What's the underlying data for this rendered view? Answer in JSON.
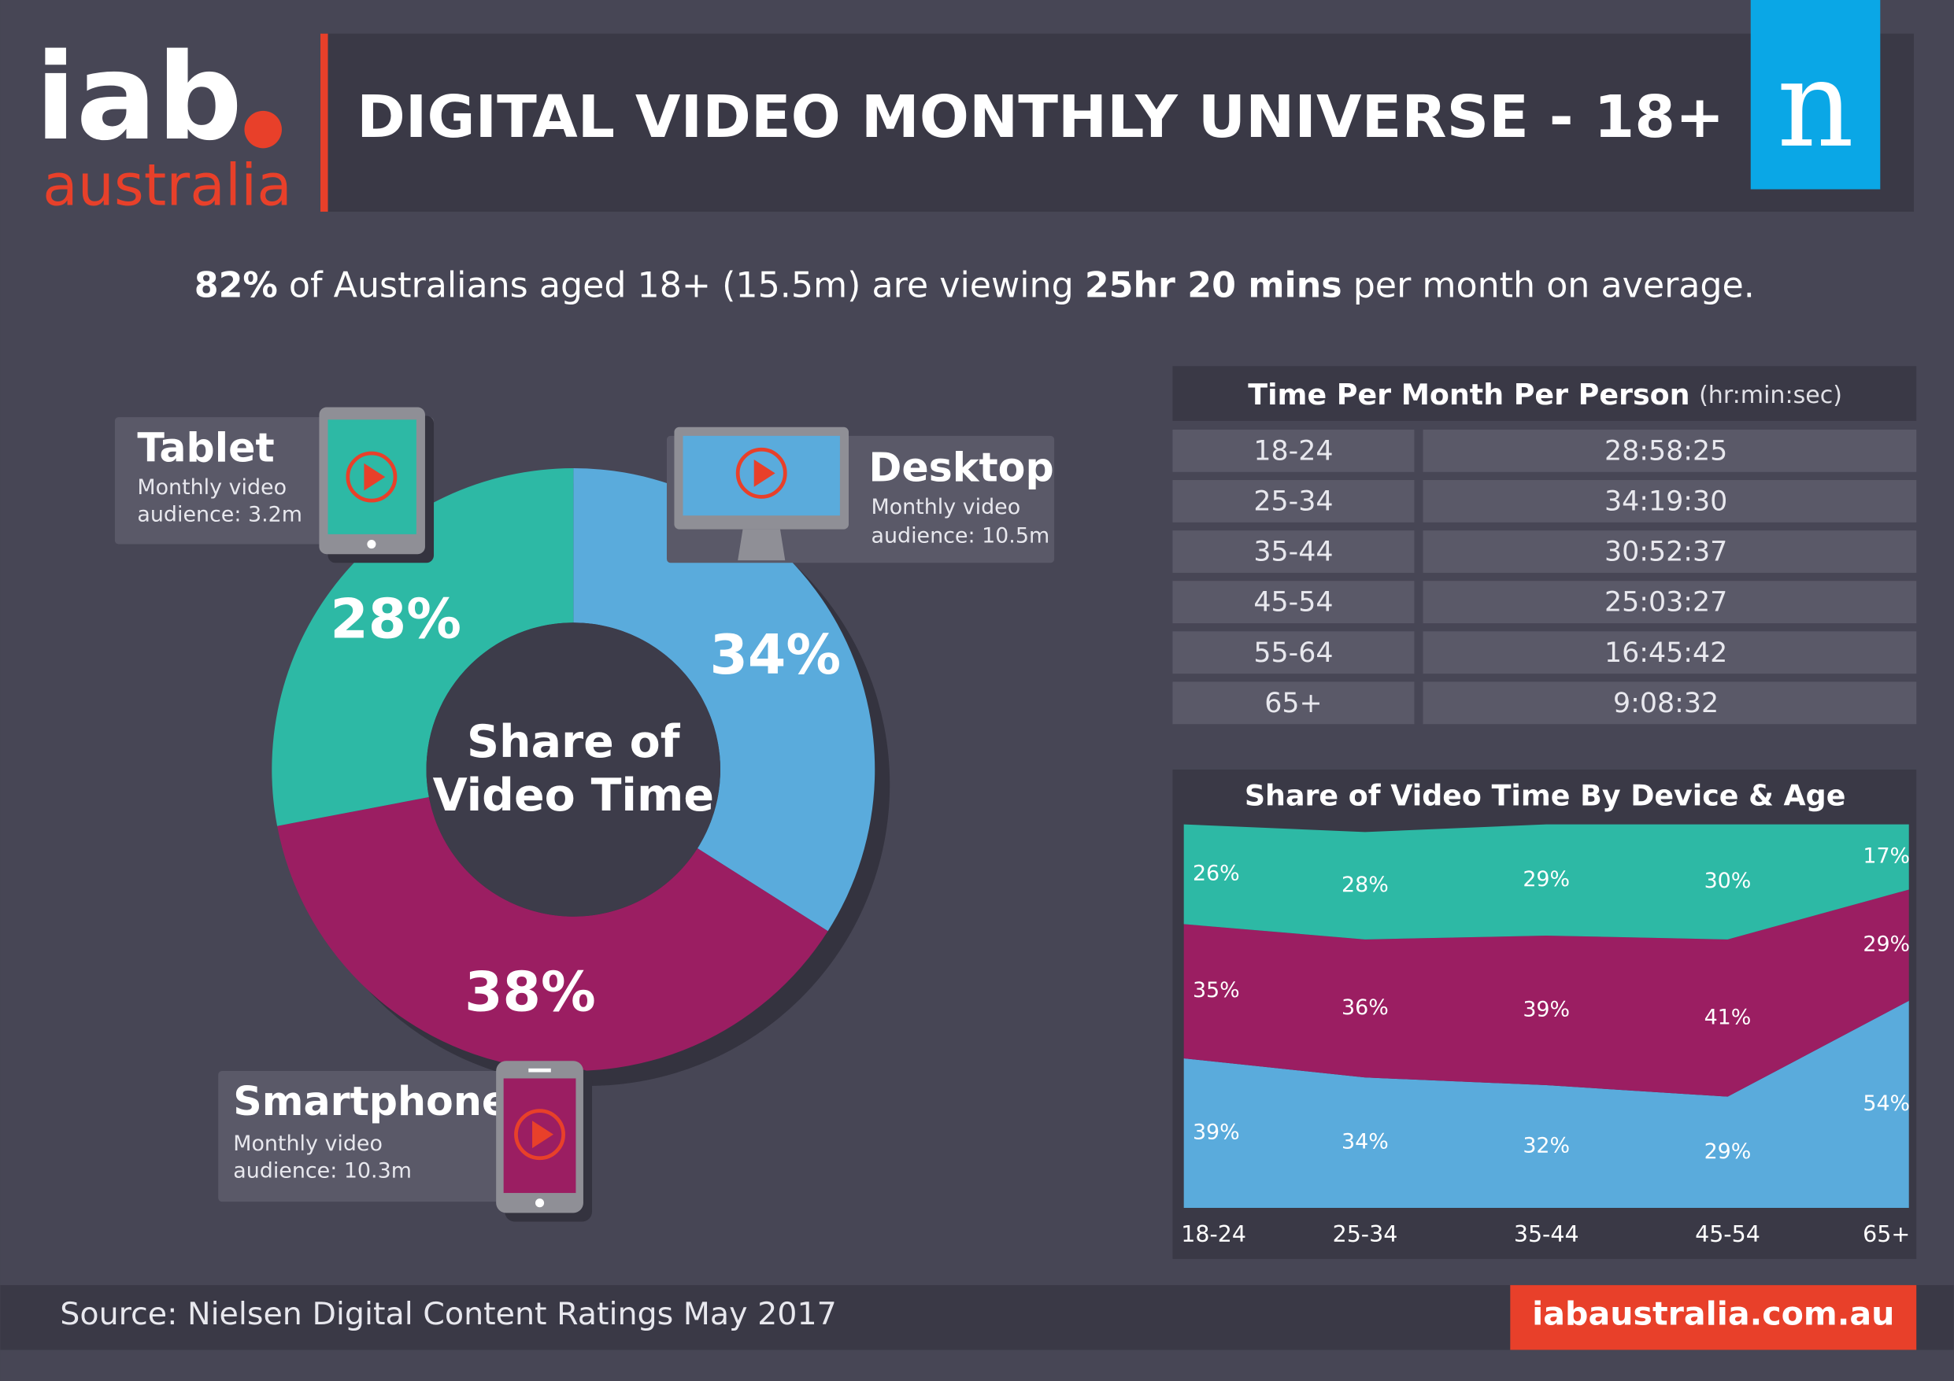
{
  "header": {
    "logo": "iab",
    "logo_sub": "australia",
    "title": "DIGITAL VIDEO MONTHLY UNIVERSE - 18+",
    "partner_logo": "n"
  },
  "summary": [
    "82%",
    " of Australians aged 18+ (15.5m) are viewing ",
    "25hr 20 mins",
    " per month on average."
  ],
  "chart_data": [
    {
      "type": "donut",
      "center_label": [
        "Share of",
        "Video Time"
      ],
      "categories": [
        "Desktop",
        "Smartphone",
        "Tablet"
      ],
      "values": [
        34,
        38,
        28
      ],
      "value_labels": [
        "34%",
        "38%",
        "28%"
      ],
      "colors": [
        "#5aabdc",
        "#9b1e62",
        "#2db9a5"
      ],
      "notes": [
        [
          "Monthly video",
          "audience: 10.5m"
        ],
        [
          "Monthly video",
          "audience: 10.3m"
        ],
        [
          "Monthly video",
          "audience: 3.2m"
        ]
      ]
    },
    {
      "type": "area",
      "title": "Share of Video Time By Device & Age",
      "categories": [
        "18-24",
        "25-34",
        "35-44",
        "45-54",
        "65+"
      ],
      "ylim": [
        0,
        100
      ],
      "series": [
        {
          "color": "#5aabdc",
          "values": [
            39,
            34,
            32,
            29,
            54
          ],
          "value_labels": [
            "39%",
            "34%",
            "32%",
            "29%",
            "54%"
          ]
        },
        {
          "color": "#9b1e62",
          "values": [
            35,
            36,
            39,
            41,
            29
          ],
          "value_labels": [
            "35%",
            "36%",
            "39%",
            "41%",
            "29%"
          ]
        },
        {
          "color": "#2db9a5",
          "values": [
            26,
            28,
            29,
            30,
            17
          ],
          "value_labels": [
            "26%",
            "28%",
            "29%",
            "30%",
            "17%"
          ]
        }
      ]
    }
  ],
  "table": {
    "title": "Time Per Month Per Person",
    "unit": "(hr:min:sec)",
    "rows": [
      [
        "18-24",
        "28:58:25"
      ],
      [
        "25-34",
        "34:19:30"
      ],
      [
        "35-44",
        "30:52:37"
      ],
      [
        "45-54",
        "25:03:27"
      ],
      [
        "55-64",
        "16:45:42"
      ],
      [
        "65+",
        "9:08:32"
      ]
    ]
  },
  "footer": {
    "source": "Source: Nielsen Digital Content Ratings May 2017",
    "url": "iabaustralia.com.au"
  }
}
